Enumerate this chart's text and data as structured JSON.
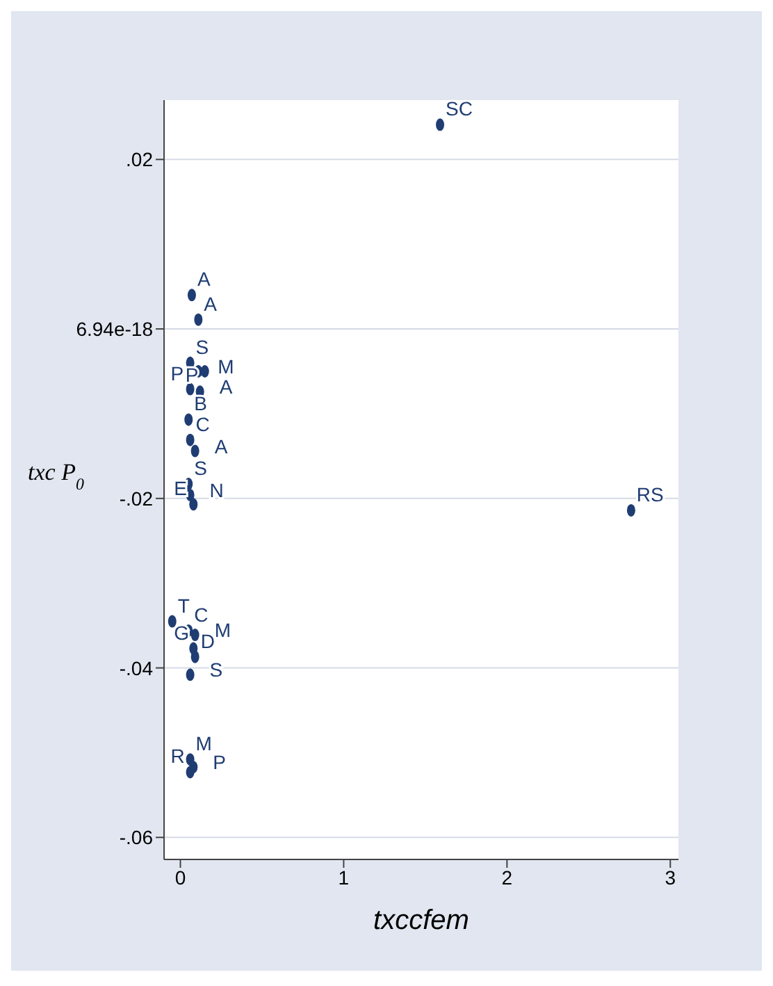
{
  "chart_data": {
    "type": "scatter",
    "xlabel": "txccfem",
    "ylabel": "txc P$_{0}$",
    "x": [
      1.59,
      2.76,
      0.07,
      0.11,
      0.06,
      0.11,
      0.15,
      0.06,
      0.12,
      0.05,
      0.06,
      0.09,
      0.05,
      0.06,
      0.08,
      -0.05,
      0.05,
      0.09,
      0.08,
      0.09,
      0.06,
      0.06,
      0.08,
      0.06
    ],
    "values": [
      0.0241,
      -0.0214,
      0.004,
      0.0011,
      -0.004,
      -0.005,
      -0.005,
      -0.0071,
      -0.0074,
      -0.0107,
      -0.0131,
      -0.0144,
      -0.0183,
      -0.0196,
      -0.0207,
      -0.0345,
      -0.0356,
      -0.0361,
      -0.0377,
      -0.0387,
      -0.0408,
      -0.0508,
      -0.0517,
      -0.0523
    ],
    "value_labels": [
      "SC",
      "RS",
      "A",
      "A",
      "S",
      "M",
      "P",
      "P",
      "A",
      "B",
      "C",
      "A",
      "S",
      "N",
      "E",
      "T",
      "C",
      "M",
      "G",
      "D",
      "S",
      "M",
      "P",
      "R"
    ],
    "color": "#1f3d73",
    "marker": "circle",
    "grid": "y",
    "xlim": [
      -0.1,
      3.05
    ],
    "xticks": [
      0,
      1,
      2,
      3
    ],
    "ylim": [
      -0.0626,
      0.027
    ],
    "yticks": [
      {
        "value": 0.02,
        "label": ".02"
      },
      {
        "value": 0,
        "label": "6.94e-18"
      },
      {
        "value": -0.02,
        "label": "-.02"
      },
      {
        "value": -0.04,
        "label": "-.04"
      },
      {
        "value": -0.06,
        "label": "-.06"
      }
    ]
  }
}
